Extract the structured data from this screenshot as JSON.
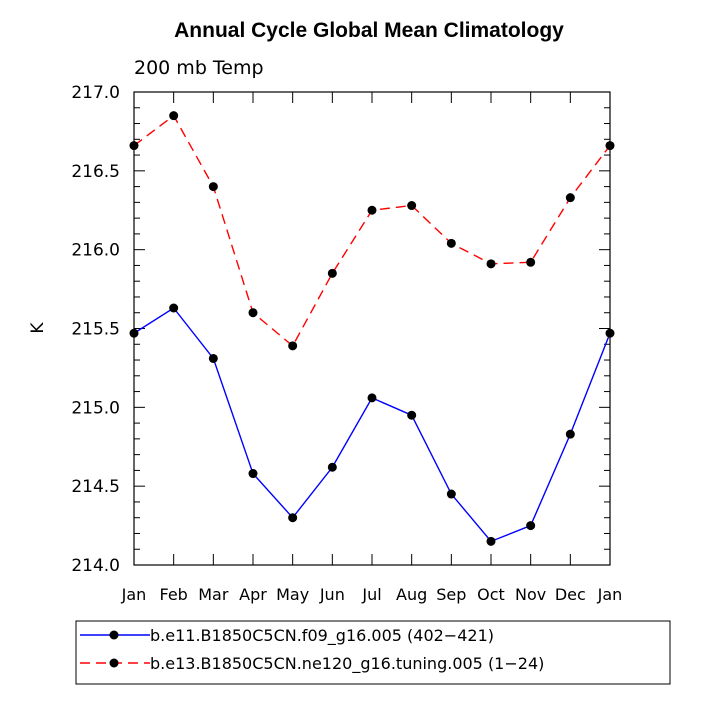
{
  "chart_data": {
    "type": "line",
    "title": "Annual Cycle Global Mean Climatology",
    "subtitle": "200 mb Temp",
    "ylabel": "K",
    "xlabel": "",
    "categories": [
      "Jan",
      "Feb",
      "Mar",
      "Apr",
      "May",
      "Jun",
      "Jul",
      "Aug",
      "Sep",
      "Oct",
      "Nov",
      "Dec",
      "Jan"
    ],
    "ylim": [
      214.0,
      217.0
    ],
    "yticks": [
      "214.0",
      "214.5",
      "215.0",
      "215.5",
      "216.0",
      "216.5",
      "217.0"
    ],
    "ytick_values": [
      214.0,
      214.5,
      215.0,
      215.5,
      216.0,
      216.5,
      217.0
    ],
    "grid": false,
    "legend_position": "bottom",
    "series": [
      {
        "name": "b.e11.B1850C5CN.f09_g16.005 (402−421)",
        "color": "#0000ff",
        "dash": "solid",
        "values": [
          215.47,
          215.63,
          215.31,
          214.58,
          214.3,
          214.62,
          215.06,
          214.95,
          214.45,
          214.15,
          214.25,
          214.83,
          215.47
        ]
      },
      {
        "name": "b.e13.B1850C5CN.ne120_g16.tuning.005 (1−24)",
        "color": "#ff0000",
        "dash": "dashed",
        "values": [
          216.66,
          216.85,
          216.4,
          215.6,
          215.39,
          215.85,
          216.25,
          216.28,
          216.04,
          215.91,
          215.92,
          216.33,
          216.66
        ]
      }
    ]
  }
}
